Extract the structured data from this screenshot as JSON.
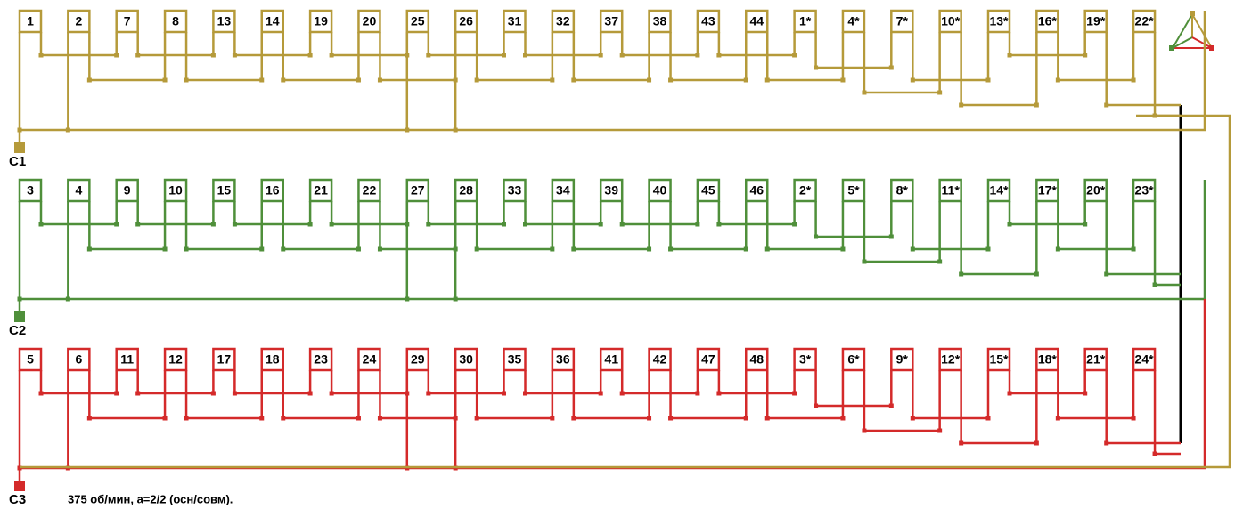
{
  "phases": [
    {
      "terminal": "C1",
      "slots": [
        "1",
        "2",
        "7",
        "8",
        "13",
        "14",
        "19",
        "20",
        "25",
        "26",
        "31",
        "32",
        "37",
        "38",
        "43",
        "44",
        "1*",
        "4*",
        "7*",
        "10*",
        "13*",
        "16*",
        "19*",
        "22*"
      ]
    },
    {
      "terminal": "C2",
      "slots": [
        "3",
        "4",
        "9",
        "10",
        "15",
        "16",
        "21",
        "22",
        "27",
        "28",
        "33",
        "34",
        "39",
        "40",
        "45",
        "46",
        "2*",
        "5*",
        "8*",
        "11*",
        "14*",
        "17*",
        "20*",
        "23*"
      ]
    },
    {
      "terminal": "C3",
      "slots": [
        "5",
        "6",
        "11",
        "12",
        "17",
        "18",
        "23",
        "24",
        "29",
        "30",
        "35",
        "36",
        "41",
        "42",
        "47",
        "48",
        "3*",
        "6*",
        "9*",
        "12*",
        "15*",
        "18*",
        "21*",
        "24*"
      ]
    }
  ],
  "footer": "375 об/мин, а=2/2 (осн/совм)."
}
